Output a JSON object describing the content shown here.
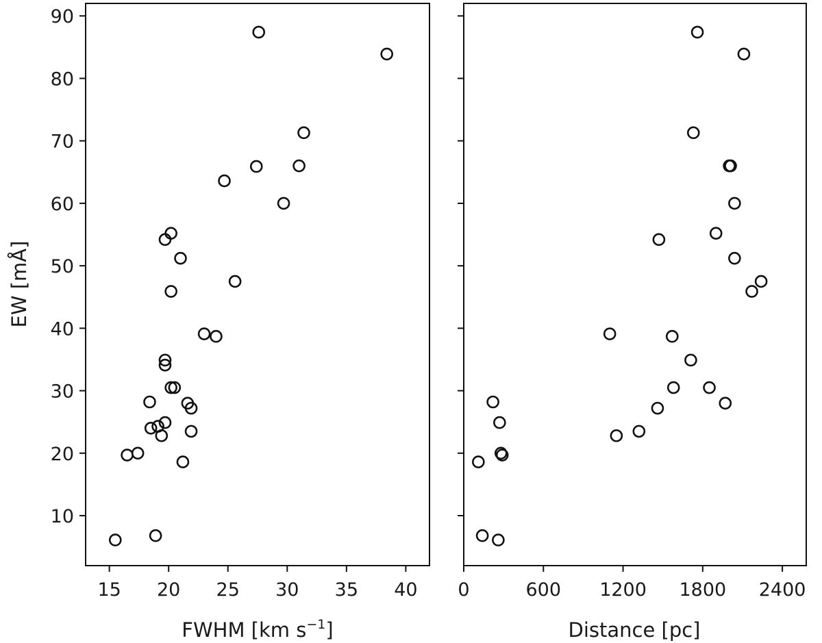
{
  "chart_data": [
    {
      "type": "scatter",
      "xlabel": "FWHM [km s",
      "xlabel_sup": "−1",
      "xlabel_end": "]",
      "ylabel": "EW [mÅ]",
      "xlim": [
        13,
        42
      ],
      "ylim": [
        2,
        92
      ],
      "xticks": [
        15,
        20,
        25,
        30,
        35,
        40
      ],
      "yticks": [
        10,
        20,
        30,
        40,
        50,
        60,
        70,
        80,
        90
      ],
      "grid": false,
      "marker": "open-circle",
      "points": [
        {
          "x": 27.6,
          "y": 87.4
        },
        {
          "x": 38.4,
          "y": 83.9
        },
        {
          "x": 31.4,
          "y": 71.3
        },
        {
          "x": 27.4,
          "y": 65.9
        },
        {
          "x": 31.0,
          "y": 66.0
        },
        {
          "x": 24.7,
          "y": 63.6
        },
        {
          "x": 29.7,
          "y": 60.0
        },
        {
          "x": 20.2,
          "y": 55.2
        },
        {
          "x": 19.7,
          "y": 54.2
        },
        {
          "x": 21.0,
          "y": 51.2
        },
        {
          "x": 25.6,
          "y": 47.5
        },
        {
          "x": 20.2,
          "y": 45.9
        },
        {
          "x": 23.0,
          "y": 39.1
        },
        {
          "x": 24.0,
          "y": 38.7
        },
        {
          "x": 19.7,
          "y": 34.9
        },
        {
          "x": 19.7,
          "y": 34.1
        },
        {
          "x": 20.2,
          "y": 30.5
        },
        {
          "x": 20.5,
          "y": 30.5
        },
        {
          "x": 18.4,
          "y": 28.2
        },
        {
          "x": 21.6,
          "y": 28.0
        },
        {
          "x": 21.9,
          "y": 27.2
        },
        {
          "x": 19.7,
          "y": 24.9
        },
        {
          "x": 18.5,
          "y": 24.0
        },
        {
          "x": 19.1,
          "y": 24.3
        },
        {
          "x": 21.9,
          "y": 23.5
        },
        {
          "x": 19.4,
          "y": 22.8
        },
        {
          "x": 16.5,
          "y": 19.7
        },
        {
          "x": 17.4,
          "y": 20.0
        },
        {
          "x": 21.2,
          "y": 18.6
        },
        {
          "x": 18.9,
          "y": 6.8
        },
        {
          "x": 15.5,
          "y": 6.1
        }
      ]
    },
    {
      "type": "scatter",
      "xlabel": "Distance [pc]",
      "xlim": [
        0,
        2580
      ],
      "ylim": [
        2,
        92
      ],
      "xticks": [
        0,
        600,
        1200,
        1800,
        2400
      ],
      "yticks": [
        10,
        20,
        30,
        40,
        50,
        60,
        70,
        80,
        90
      ],
      "shared_y": true,
      "grid": false,
      "marker": "open-circle",
      "points": [
        {
          "x": 1760,
          "y": 87.4
        },
        {
          "x": 2110,
          "y": 83.9
        },
        {
          "x": 1730,
          "y": 71.3
        },
        {
          "x": 2000,
          "y": 66.0
        },
        {
          "x": 2010,
          "y": 66.0
        },
        {
          "x": 2040,
          "y": 60.0
        },
        {
          "x": 1470,
          "y": 54.2
        },
        {
          "x": 1900,
          "y": 55.2
        },
        {
          "x": 2040,
          "y": 51.2
        },
        {
          "x": 2240,
          "y": 47.5
        },
        {
          "x": 2170,
          "y": 45.9
        },
        {
          "x": 1100,
          "y": 39.1
        },
        {
          "x": 1570,
          "y": 38.7
        },
        {
          "x": 1710,
          "y": 34.9
        },
        {
          "x": 1580,
          "y": 30.5
        },
        {
          "x": 1850,
          "y": 30.5
        },
        {
          "x": 220,
          "y": 28.2
        },
        {
          "x": 1970,
          "y": 28.0
        },
        {
          "x": 1460,
          "y": 27.2
        },
        {
          "x": 270,
          "y": 24.9
        },
        {
          "x": 1320,
          "y": 23.5
        },
        {
          "x": 1150,
          "y": 22.8
        },
        {
          "x": 280,
          "y": 20.0
        },
        {
          "x": 290,
          "y": 19.7
        },
        {
          "x": 110,
          "y": 18.6
        },
        {
          "x": 140,
          "y": 6.8
        },
        {
          "x": 260,
          "y": 6.1
        }
      ]
    }
  ]
}
